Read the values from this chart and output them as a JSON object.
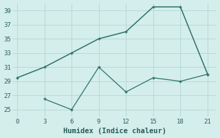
{
  "line1_x": [
    0,
    3,
    6,
    9,
    12,
    15,
    18,
    21
  ],
  "line1_y": [
    29.5,
    31.0,
    33.0,
    35.0,
    36.0,
    39.5,
    39.5,
    30.0
  ],
  "line2_x": [
    3,
    6,
    9,
    12,
    15,
    18,
    21
  ],
  "line2_y": [
    26.5,
    25.0,
    31.0,
    27.5,
    29.5,
    29.0,
    30.0
  ],
  "line_color": "#2a7068",
  "bg_color": "#d4eeeb",
  "grid_color": "#b8d8d5",
  "xlabel": "Humidex (Indice chaleur)",
  "ylim": [
    24,
    40
  ],
  "xlim": [
    -0.5,
    22
  ],
  "yticks": [
    25,
    27,
    29,
    31,
    33,
    35,
    37,
    39
  ],
  "xticks": [
    0,
    3,
    6,
    9,
    12,
    15,
    18,
    21
  ],
  "font_color": "#2a5c58",
  "tick_fontsize": 6.5,
  "xlabel_fontsize": 7.5,
  "linewidth1": 1.1,
  "linewidth2": 0.9,
  "markersize": 2.5
}
